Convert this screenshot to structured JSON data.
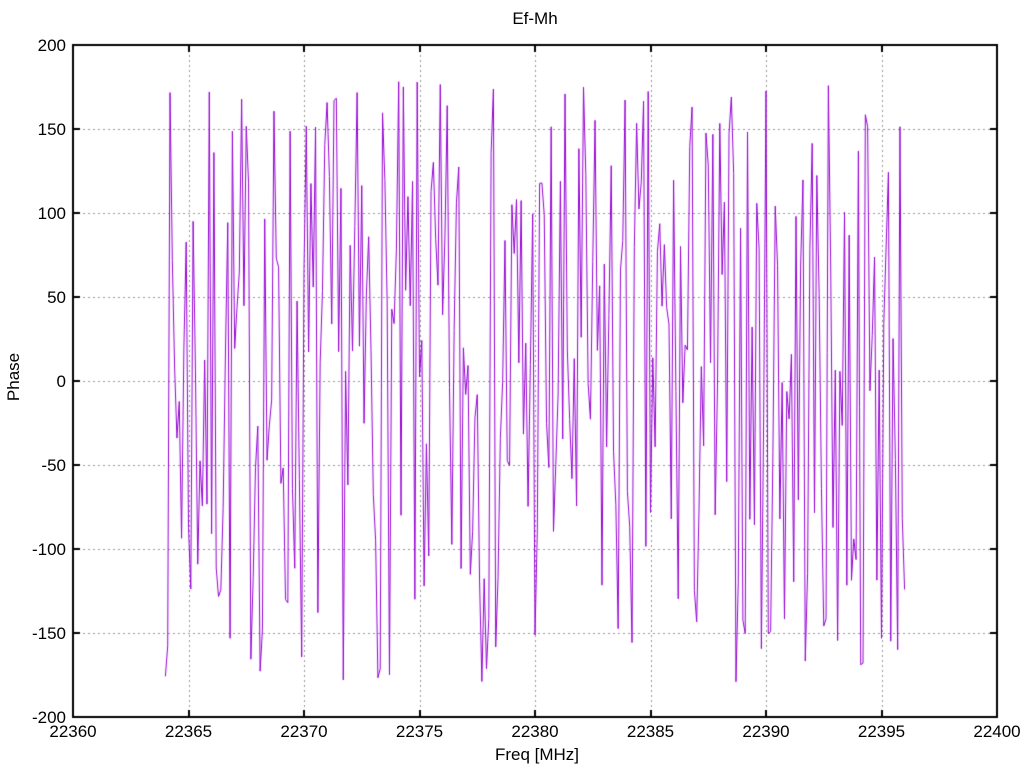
{
  "colors": {
    "background": "#ffffff",
    "frame": "#000000",
    "grid": "#999999",
    "text": "#000000",
    "series_line": "#9400D3"
  },
  "chart_data": {
    "type": "line",
    "title": "Ef-Mh",
    "xlabel": "Freq [MHz]",
    "ylabel": "Phase",
    "xlim": [
      22360,
      22400
    ],
    "ylim": [
      -200,
      200
    ],
    "xticks": [
      22360,
      22365,
      22370,
      22375,
      22380,
      22385,
      22390,
      22395,
      22400
    ],
    "yticks": [
      -200,
      -150,
      -100,
      -50,
      0,
      50,
      100,
      150,
      200
    ],
    "grid": true,
    "grid_style": "dotted",
    "legend": "none",
    "data_x_range": [
      22364.0,
      22396.0
    ],
    "data_y_range": [
      -180,
      180
    ],
    "series": [
      {
        "name": "phase",
        "style": "lines",
        "color": "#9400D3",
        "line_width": 1,
        "generator": {
          "comment": "Dense random fringe-phase noise as read from plot: uniformly distributed phase values connected by lines",
          "x_start": 22364.0,
          "x_end": 22396.0,
          "x_step": 0.1,
          "y_min": -180,
          "y_max": 180,
          "distribution": "uniform",
          "seed": 7
        }
      }
    ]
  }
}
